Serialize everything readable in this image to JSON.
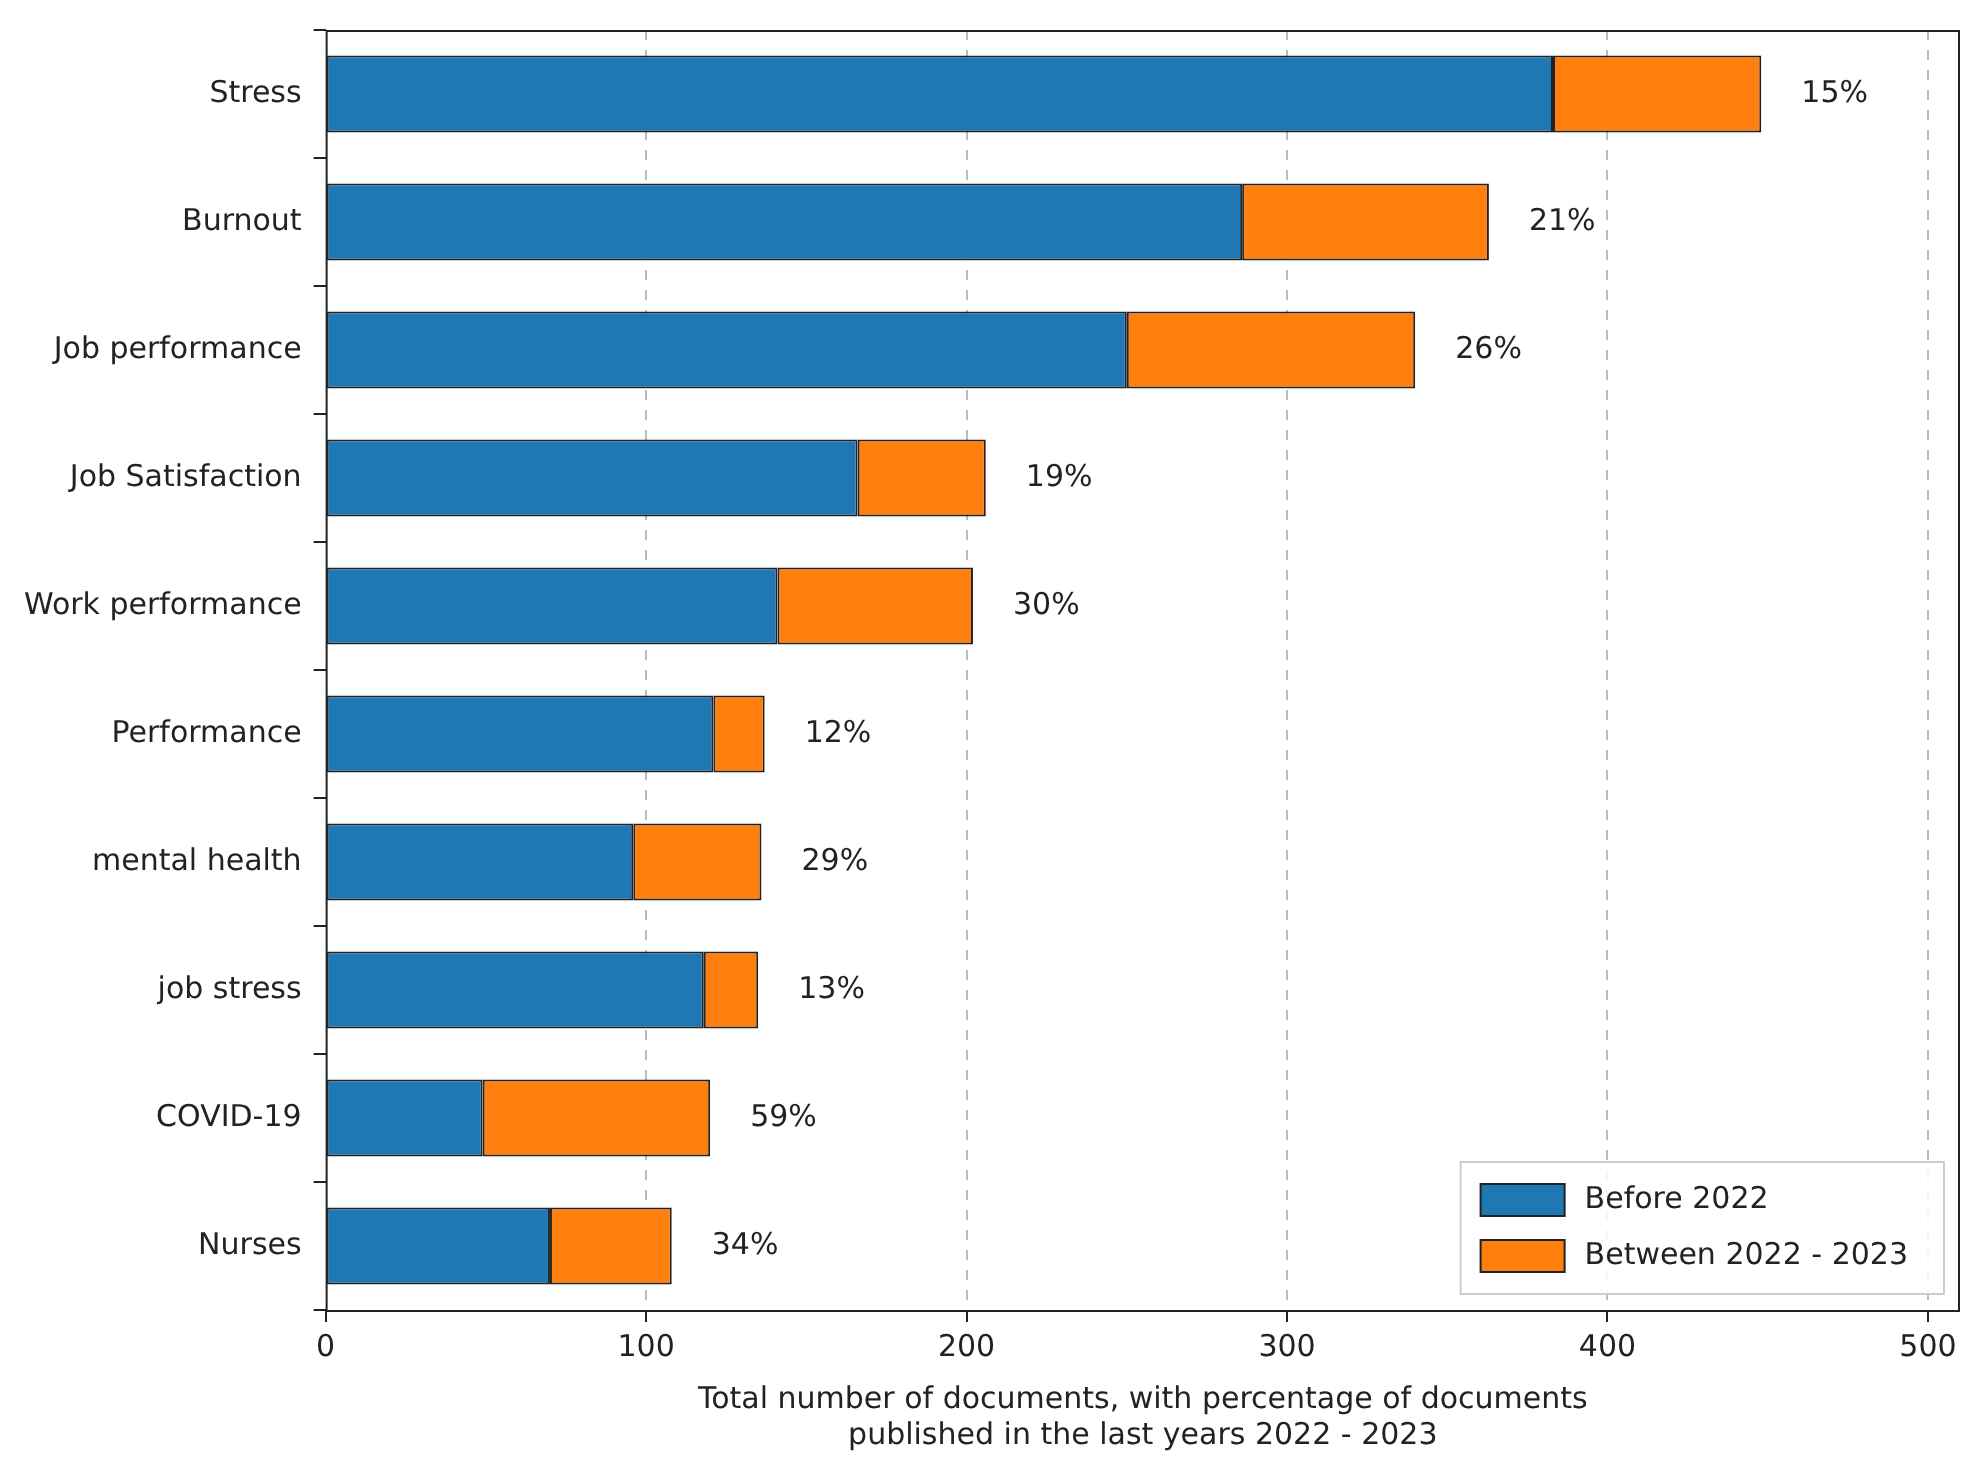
{
  "chart_data": {
    "type": "bar",
    "orientation": "horizontal",
    "stacked": true,
    "categories": [
      "Stress",
      "Burnout",
      "Job performance",
      "Job Satisfaction",
      "Work performance",
      "Performance",
      "mental health",
      "job stress",
      "COVID-19",
      "Nurses"
    ],
    "series": [
      {
        "name": "Before 2022",
        "color": "#1f77b4",
        "values": [
          383,
          286,
          250,
          166,
          141,
          121,
          96,
          118,
          49,
          70
        ]
      },
      {
        "name": "Between 2022 - 2023",
        "color": "#ff7f0e",
        "values": [
          65,
          77,
          90,
          40,
          61,
          16,
          40,
          17,
          71,
          38
        ]
      }
    ],
    "xlabel": "Total number of documents, with percentage of documents published in the last years 2022 - 2023",
    "xlim": [
      0,
      510
    ],
    "xticks": [
      0,
      100,
      200,
      300,
      400,
      500
    ],
    "grid": "x",
    "legend": "bottom right",
    "annotations": [
      {
        "text": "15%",
        "x": 448,
        "y": "Stress"
      },
      {
        "text": "21%",
        "x": 363,
        "y": "Burnout"
      },
      {
        "text": "26%",
        "x": 340,
        "y": "Job performance"
      },
      {
        "text": "19%",
        "x": 206,
        "y": "Job Satisfaction"
      },
      {
        "text": "30%",
        "x": 202,
        "y": "Work performance"
      },
      {
        "text": "12%",
        "x": 137,
        "y": "Performance"
      },
      {
        "text": "29%",
        "x": 136,
        "y": "mental health"
      },
      {
        "text": "13%",
        "x": 135,
        "y": "job stress"
      },
      {
        "text": "59%",
        "x": 120,
        "y": "COVID-19"
      },
      {
        "text": "34%",
        "x": 108,
        "y": "Nurses"
      }
    ]
  }
}
